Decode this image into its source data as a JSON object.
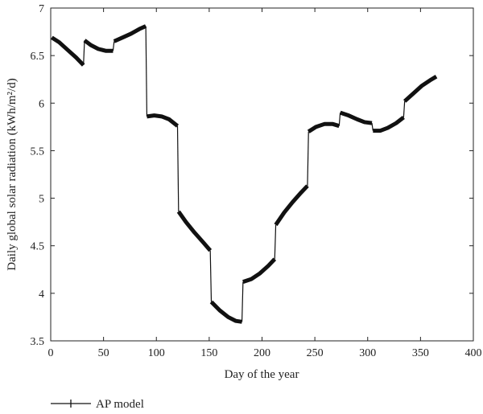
{
  "chart_data": {
    "type": "line",
    "xlabel": "Day of the year",
    "ylabel": "Daily global solar radiation (kWh/m²/d)",
    "xlim": [
      0,
      400
    ],
    "ylim": [
      3.5,
      7
    ],
    "xticks": [
      0,
      50,
      100,
      150,
      200,
      250,
      300,
      350,
      400
    ],
    "yticks": [
      3.5,
      4,
      4.5,
      5,
      5.5,
      6,
      6.5,
      7
    ],
    "grid": false,
    "legend_position": "bottom-left",
    "line_color": "#111111",
    "series": [
      {
        "name": "AP model",
        "segments": [
          {
            "x": [
              1,
              8,
              16,
              24,
              31
            ],
            "y": [
              6.69,
              6.64,
              6.56,
              6.48,
              6.4
            ]
          },
          {
            "x": [
              32,
              38,
              45,
              52,
              59
            ],
            "y": [
              6.66,
              6.61,
              6.57,
              6.55,
              6.55
            ]
          },
          {
            "x": [
              60,
              68,
              76,
              84,
              90
            ],
            "y": [
              6.65,
              6.69,
              6.73,
              6.78,
              6.81
            ]
          },
          {
            "x": [
              91,
              98,
              105,
              112,
              120
            ],
            "y": [
              5.86,
              5.87,
              5.86,
              5.83,
              5.76
            ]
          },
          {
            "x": [
              121,
              128,
              136,
              144,
              151
            ],
            "y": [
              4.86,
              4.75,
              4.64,
              4.54,
              4.45
            ]
          },
          {
            "x": [
              152,
              160,
              168,
              175,
              181
            ],
            "y": [
              3.91,
              3.82,
              3.75,
              3.71,
              3.7
            ]
          },
          {
            "x": [
              182,
              190,
              198,
              206,
              212
            ],
            "y": [
              4.12,
              4.15,
              4.21,
              4.29,
              4.36
            ]
          },
          {
            "x": [
              213,
              221,
              229,
              237,
              243
            ],
            "y": [
              4.72,
              4.85,
              4.96,
              5.06,
              5.13
            ]
          },
          {
            "x": [
              244,
              251,
              259,
              267,
              273
            ],
            "y": [
              5.7,
              5.75,
              5.78,
              5.78,
              5.76
            ]
          },
          {
            "x": [
              274,
              282,
              290,
              297,
              304
            ],
            "y": [
              5.9,
              5.87,
              5.83,
              5.8,
              5.79
            ]
          },
          {
            "x": [
              305,
              312,
              319,
              327,
              334
            ],
            "y": [
              5.71,
              5.71,
              5.74,
              5.79,
              5.85
            ]
          },
          {
            "x": [
              335,
              343,
              351,
              359,
              365
            ],
            "y": [
              6.02,
              6.1,
              6.18,
              6.24,
              6.28
            ]
          }
        ]
      }
    ]
  }
}
